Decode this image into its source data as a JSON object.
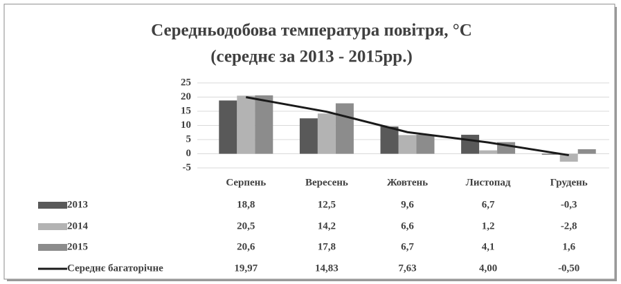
{
  "chart_data": {
    "type": "bar",
    "title": [
      "Середньодобова температура повітря, °С",
      "(середнє за 2013 - 2015рр.)"
    ],
    "categories": [
      "Серпень",
      "Вересень",
      "Жовтень",
      "Листопад",
      "Грудень"
    ],
    "series": [
      {
        "name": "2013",
        "color": "#595959",
        "values": [
          18.8,
          12.5,
          9.6,
          6.7,
          -0.3
        ],
        "value_labels": [
          "18,8",
          "12,5",
          "9,6",
          "6,7",
          "-0,3"
        ]
      },
      {
        "name": "2014",
        "color": "#b3b3b3",
        "values": [
          20.5,
          14.2,
          6.6,
          1.2,
          -2.8
        ],
        "value_labels": [
          "20,5",
          "14,2",
          "6,6",
          "1,2",
          "-2,8"
        ]
      },
      {
        "name": "2015",
        "color": "#8c8c8c",
        "values": [
          20.6,
          17.8,
          6.7,
          4.1,
          1.6
        ],
        "value_labels": [
          "20,6",
          "17,8",
          "6,7",
          "4,1",
          "1,6"
        ]
      },
      {
        "name": "Середнє багаторічне",
        "type": "line",
        "color": "#1a1a1a",
        "values": [
          19.97,
          14.83,
          7.63,
          4.0,
          -0.5
        ],
        "value_labels": [
          "19,97",
          "14,83",
          "7,63",
          "4,00",
          "-0,50"
        ]
      }
    ],
    "ylim": [
      -5,
      25
    ],
    "yticks": [
      -5,
      0,
      5,
      10,
      15,
      20,
      25
    ],
    "grid": true
  }
}
